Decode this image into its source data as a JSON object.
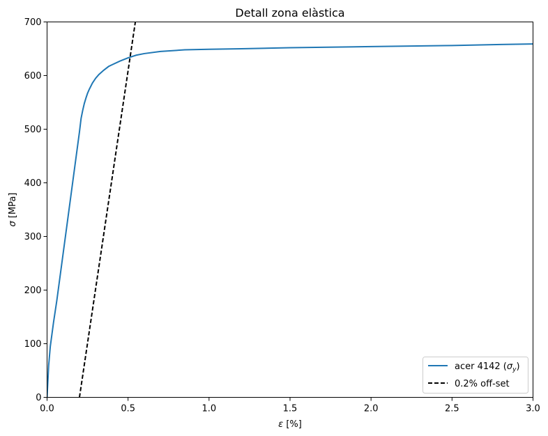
{
  "chart_data": {
    "type": "line",
    "title": "Detall zona elàstica",
    "xlabel_symbol": "ε",
    "xlabel_unit": " [%]",
    "ylabel_symbol": "σ",
    "ylabel_unit": " [MPa]",
    "xlim": [
      0.0,
      3.0
    ],
    "ylim": [
      0,
      700
    ],
    "xticks": [
      0.0,
      0.5,
      1.0,
      1.5,
      2.0,
      2.5,
      3.0
    ],
    "xtick_labels": [
      "0.0",
      "0.5",
      "1.0",
      "1.5",
      "2.0",
      "2.5",
      "3.0"
    ],
    "yticks": [
      0,
      100,
      200,
      300,
      400,
      500,
      600,
      700
    ],
    "ytick_labels": [
      "0",
      "100",
      "200",
      "300",
      "400",
      "500",
      "600",
      "700"
    ],
    "grid": false,
    "legend_position": "lower-right",
    "series": [
      {
        "name": "acer 4142",
        "legend_label_prefix": "acer 4142 (",
        "legend_label_symbol": "σ",
        "legend_label_subscript": "y",
        "legend_label_suffix": ")",
        "style": "solid",
        "color": "#1f77b4",
        "x": [
          0.0,
          0.005,
          0.01,
          0.02,
          0.04,
          0.06,
          0.08,
          0.1,
          0.12,
          0.14,
          0.16,
          0.18,
          0.2,
          0.21,
          0.22,
          0.23,
          0.24,
          0.25,
          0.26,
          0.28,
          0.3,
          0.32,
          0.35,
          0.38,
          0.4,
          0.45,
          0.5,
          0.55,
          0.6,
          0.7,
          0.85,
          1.0,
          1.2,
          1.5,
          2.0,
          2.5,
          2.8,
          3.0
        ],
        "y": [
          0,
          30,
          60,
          95,
          140,
          180,
          225,
          270,
          315,
          360,
          405,
          450,
          495,
          520,
          535,
          548,
          558,
          567,
          574,
          586,
          595,
          602,
          610,
          617,
          620,
          627,
          633,
          638,
          641,
          645,
          648,
          649,
          650,
          652,
          654,
          656,
          658,
          659
        ]
      },
      {
        "name": "0.2% off-set",
        "legend_label": "0.2% off-set",
        "style": "dashed",
        "color": "#000000",
        "x": [
          0.2,
          0.545
        ],
        "y": [
          0,
          700
        ]
      }
    ]
  }
}
